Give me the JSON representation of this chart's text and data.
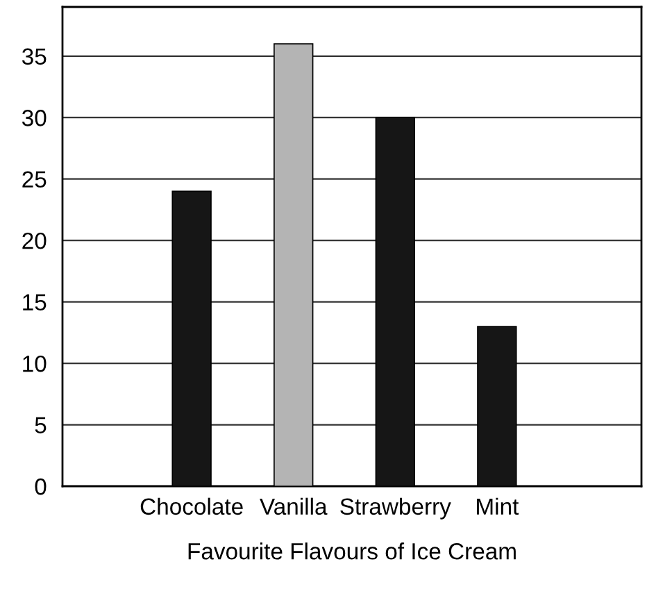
{
  "chart_data": {
    "type": "bar",
    "xlabel": "Favourite Flavours of Ice Cream",
    "categories": [
      "Chocolate",
      "Vanilla",
      "Strawberry",
      "Mint"
    ],
    "values": [
      24,
      36,
      30,
      13
    ],
    "colors": [
      "#161616",
      "#b4b4b4",
      "#161616",
      "#161616"
    ],
    "ylim": [
      0,
      39
    ],
    "yticks": [
      0,
      5,
      10,
      15,
      20,
      25,
      30,
      35
    ],
    "grid": "y"
  }
}
